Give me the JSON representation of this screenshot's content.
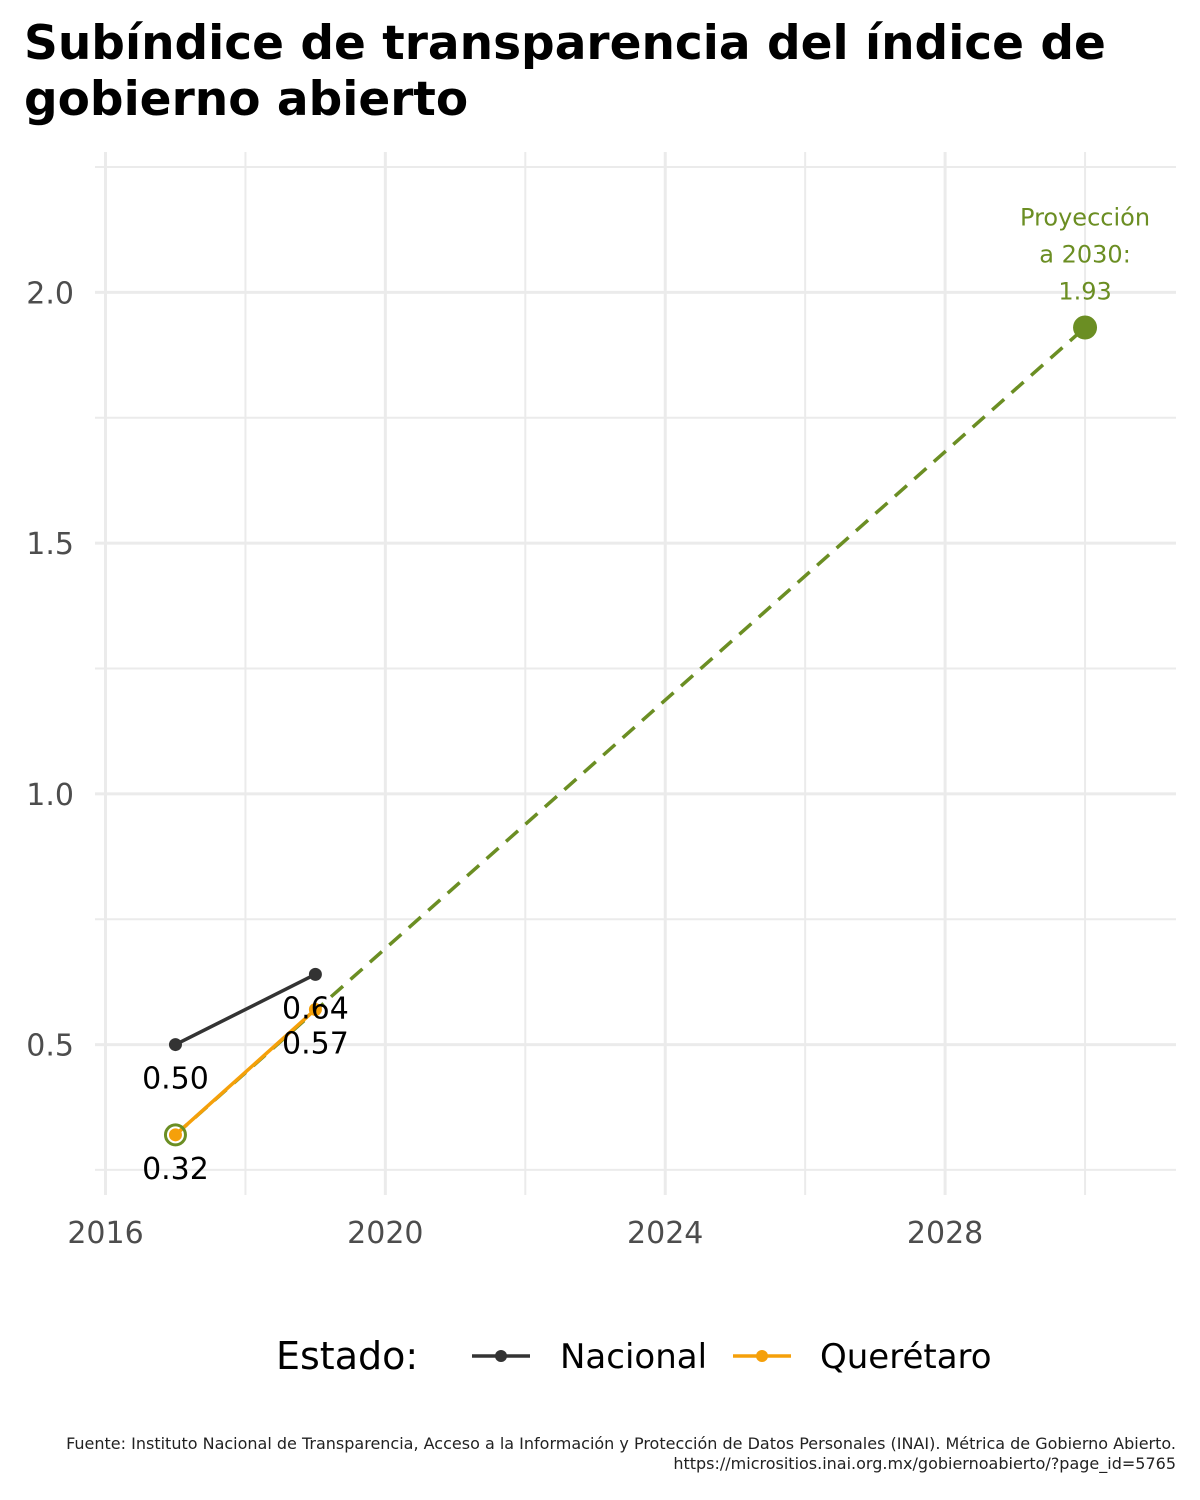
{
  "chart_data": {
    "type": "line",
    "title": "Subíndice de transparencia del índice de gobierno abierto",
    "xlabel": "",
    "ylabel": "",
    "x_ticks": [
      2016,
      2020,
      2024,
      2028
    ],
    "y_ticks": [
      "0.5",
      "1.0",
      "1.5",
      "2.0"
    ],
    "xlim": [
      2015.85,
      2031.3
    ],
    "ylim": [
      0.2,
      2.28
    ],
    "grid": true,
    "legend": {
      "title": "Estado:",
      "position": "bottom",
      "entries": [
        "Nacional",
        "Querétaro"
      ]
    },
    "series": [
      {
        "name": "Nacional",
        "color": "#333333",
        "points": [
          {
            "x": 2017,
            "y": 0.5,
            "label": "0.50"
          },
          {
            "x": 2019,
            "y": 0.64,
            "label": "0.64"
          }
        ]
      },
      {
        "name": "Querétaro",
        "color": "#F5A00A",
        "points": [
          {
            "x": 2017,
            "y": 0.32,
            "label": "0.32"
          },
          {
            "x": 2019,
            "y": 0.57,
            "label": "0.57"
          }
        ]
      }
    ],
    "projection": {
      "color": "#6B8E23",
      "from": {
        "x": 2017,
        "y": 0.32
      },
      "to": {
        "x": 2030,
        "y": 1.93
      },
      "label_lines": [
        "Proyección",
        "a 2030:",
        "1.93"
      ]
    },
    "caption": "Fuente: Instituto Nacional de Transparencia, Acceso a la Información y Protección de Datos Personales (INAI). Métrica de Gobierno Abierto. https://micrositios.inai.org.mx/gobiernoabierto/?page_id=5765"
  }
}
